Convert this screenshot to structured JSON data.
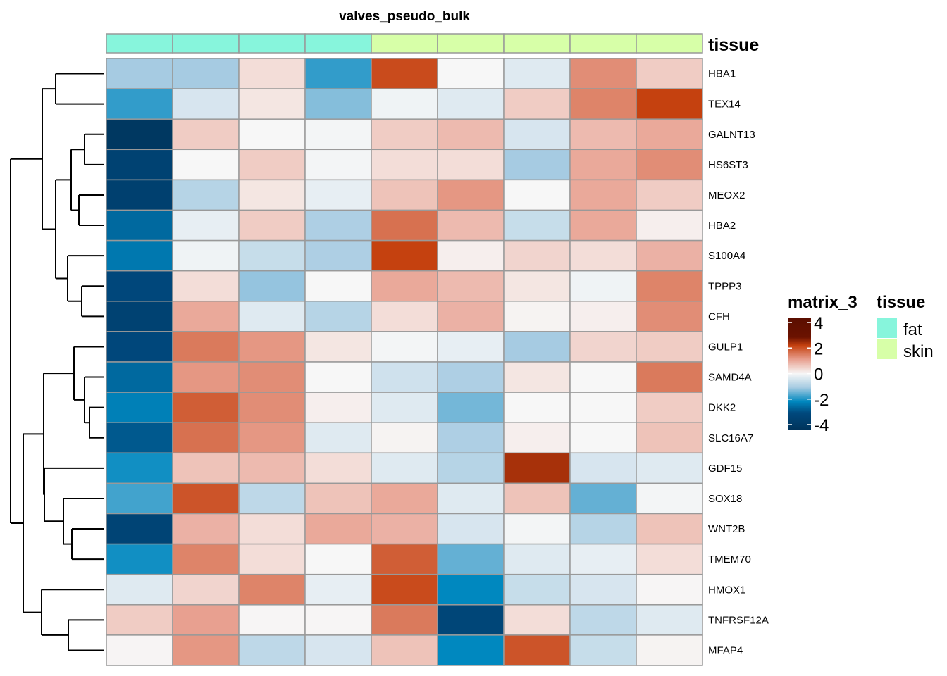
{
  "chart_data": {
    "type": "heatmap",
    "title": "valves_pseudo_bulk",
    "column_annotation": {
      "name": "tissue",
      "values": [
        "fat",
        "fat",
        "fat",
        "fat",
        "skin",
        "skin",
        "skin",
        "skin",
        "skin"
      ],
      "colors": {
        "fat": "#87f5dc",
        "skin": "#d7ffa8"
      }
    },
    "rows": [
      "HBA1",
      "TEX14",
      "GALNT13",
      "HS6ST3",
      "MEOX2",
      "HBA2",
      "S100A4",
      "TPPP3",
      "CFH",
      "GULP1",
      "SAMD4A",
      "DKK2",
      "SLC16A7",
      "GDF15",
      "SOX18",
      "WNT2B",
      "TMEM70",
      "HMOX1",
      "TNFRSF12A",
      "MFAP4"
    ],
    "values": [
      [
        -1.0,
        -1.0,
        0.3,
        -1.7,
        1.9,
        0.0,
        -0.3,
        1.2,
        0.5
      ],
      [
        -1.7,
        -0.4,
        0.2,
        -1.2,
        -0.1,
        -0.3,
        0.5,
        1.3,
        2.0
      ],
      [
        -3.8,
        0.5,
        0.0,
        -0.05,
        0.5,
        0.7,
        -0.4,
        0.7,
        0.9
      ],
      [
        -3.2,
        0.0,
        0.5,
        -0.05,
        0.3,
        0.3,
        -1.0,
        0.9,
        1.2
      ],
      [
        -3.3,
        -0.8,
        0.2,
        -0.2,
        0.6,
        1.1,
        0.0,
        0.9,
        0.5
      ],
      [
        -2.4,
        -0.2,
        0.5,
        -0.9,
        1.5,
        0.7,
        -0.6,
        0.9,
        0.1
      ],
      [
        -2.2,
        -0.1,
        -0.6,
        -0.9,
        2.0,
        0.1,
        0.4,
        0.3,
        0.8
      ],
      [
        -2.9,
        0.3,
        -1.1,
        0.0,
        0.9,
        0.7,
        0.2,
        -0.1,
        1.3
      ],
      [
        -3.2,
        0.9,
        -0.3,
        -0.8,
        0.3,
        0.8,
        0.05,
        0.1,
        1.2
      ],
      [
        -2.9,
        1.4,
        1.1,
        0.2,
        -0.05,
        -0.2,
        -1.0,
        0.4,
        0.5
      ],
      [
        -2.4,
        1.1,
        1.2,
        0.0,
        -0.5,
        -0.9,
        0.2,
        0.0,
        1.4
      ],
      [
        -2.1,
        1.7,
        1.2,
        0.1,
        -0.3,
        -1.3,
        0.0,
        0.0,
        0.5
      ],
      [
        -2.6,
        1.5,
        1.1,
        -0.3,
        0.05,
        -0.9,
        0.1,
        0.0,
        0.6
      ],
      [
        -1.9,
        0.6,
        0.7,
        0.3,
        -0.3,
        -0.8,
        2.2,
        -0.4,
        -0.3
      ],
      [
        -1.6,
        1.8,
        -0.7,
        0.6,
        0.9,
        -0.3,
        0.6,
        -1.4,
        -0.05
      ],
      [
        -3.1,
        0.8,
        0.3,
        0.9,
        0.8,
        -0.4,
        -0.05,
        -0.8,
        0.6
      ],
      [
        -1.9,
        1.3,
        0.3,
        0.0,
        1.7,
        -1.4,
        -0.3,
        -0.2,
        0.3
      ],
      [
        -0.3,
        0.4,
        1.3,
        -0.2,
        1.9,
        -2.0,
        -0.6,
        -0.4,
        0.02
      ],
      [
        0.5,
        1.0,
        0.02,
        0.02,
        1.4,
        -3.0,
        0.3,
        -0.7,
        -0.3
      ],
      [
        0.03,
        1.1,
        -0.7,
        -0.4,
        0.6,
        -2.0,
        1.8,
        -0.6,
        0.05
      ]
    ],
    "row_dendrogram": true,
    "color_scale": {
      "name": "matrix_3",
      "range": [
        -4,
        4
      ],
      "ticks": [
        "4",
        "2",
        "0",
        "-2",
        "-4"
      ],
      "stops": [
        [
          -4,
          "#00345b"
        ],
        [
          -2.8,
          "#00497e"
        ],
        [
          -2,
          "#0088bf"
        ],
        [
          -1,
          "#a6cbe2"
        ],
        [
          0,
          "#f7f7f7"
        ],
        [
          1,
          "#e8a090"
        ],
        [
          2,
          "#c5410f"
        ],
        [
          2.6,
          "#6b1200"
        ],
        [
          4,
          "#5a0e00"
        ]
      ]
    }
  }
}
